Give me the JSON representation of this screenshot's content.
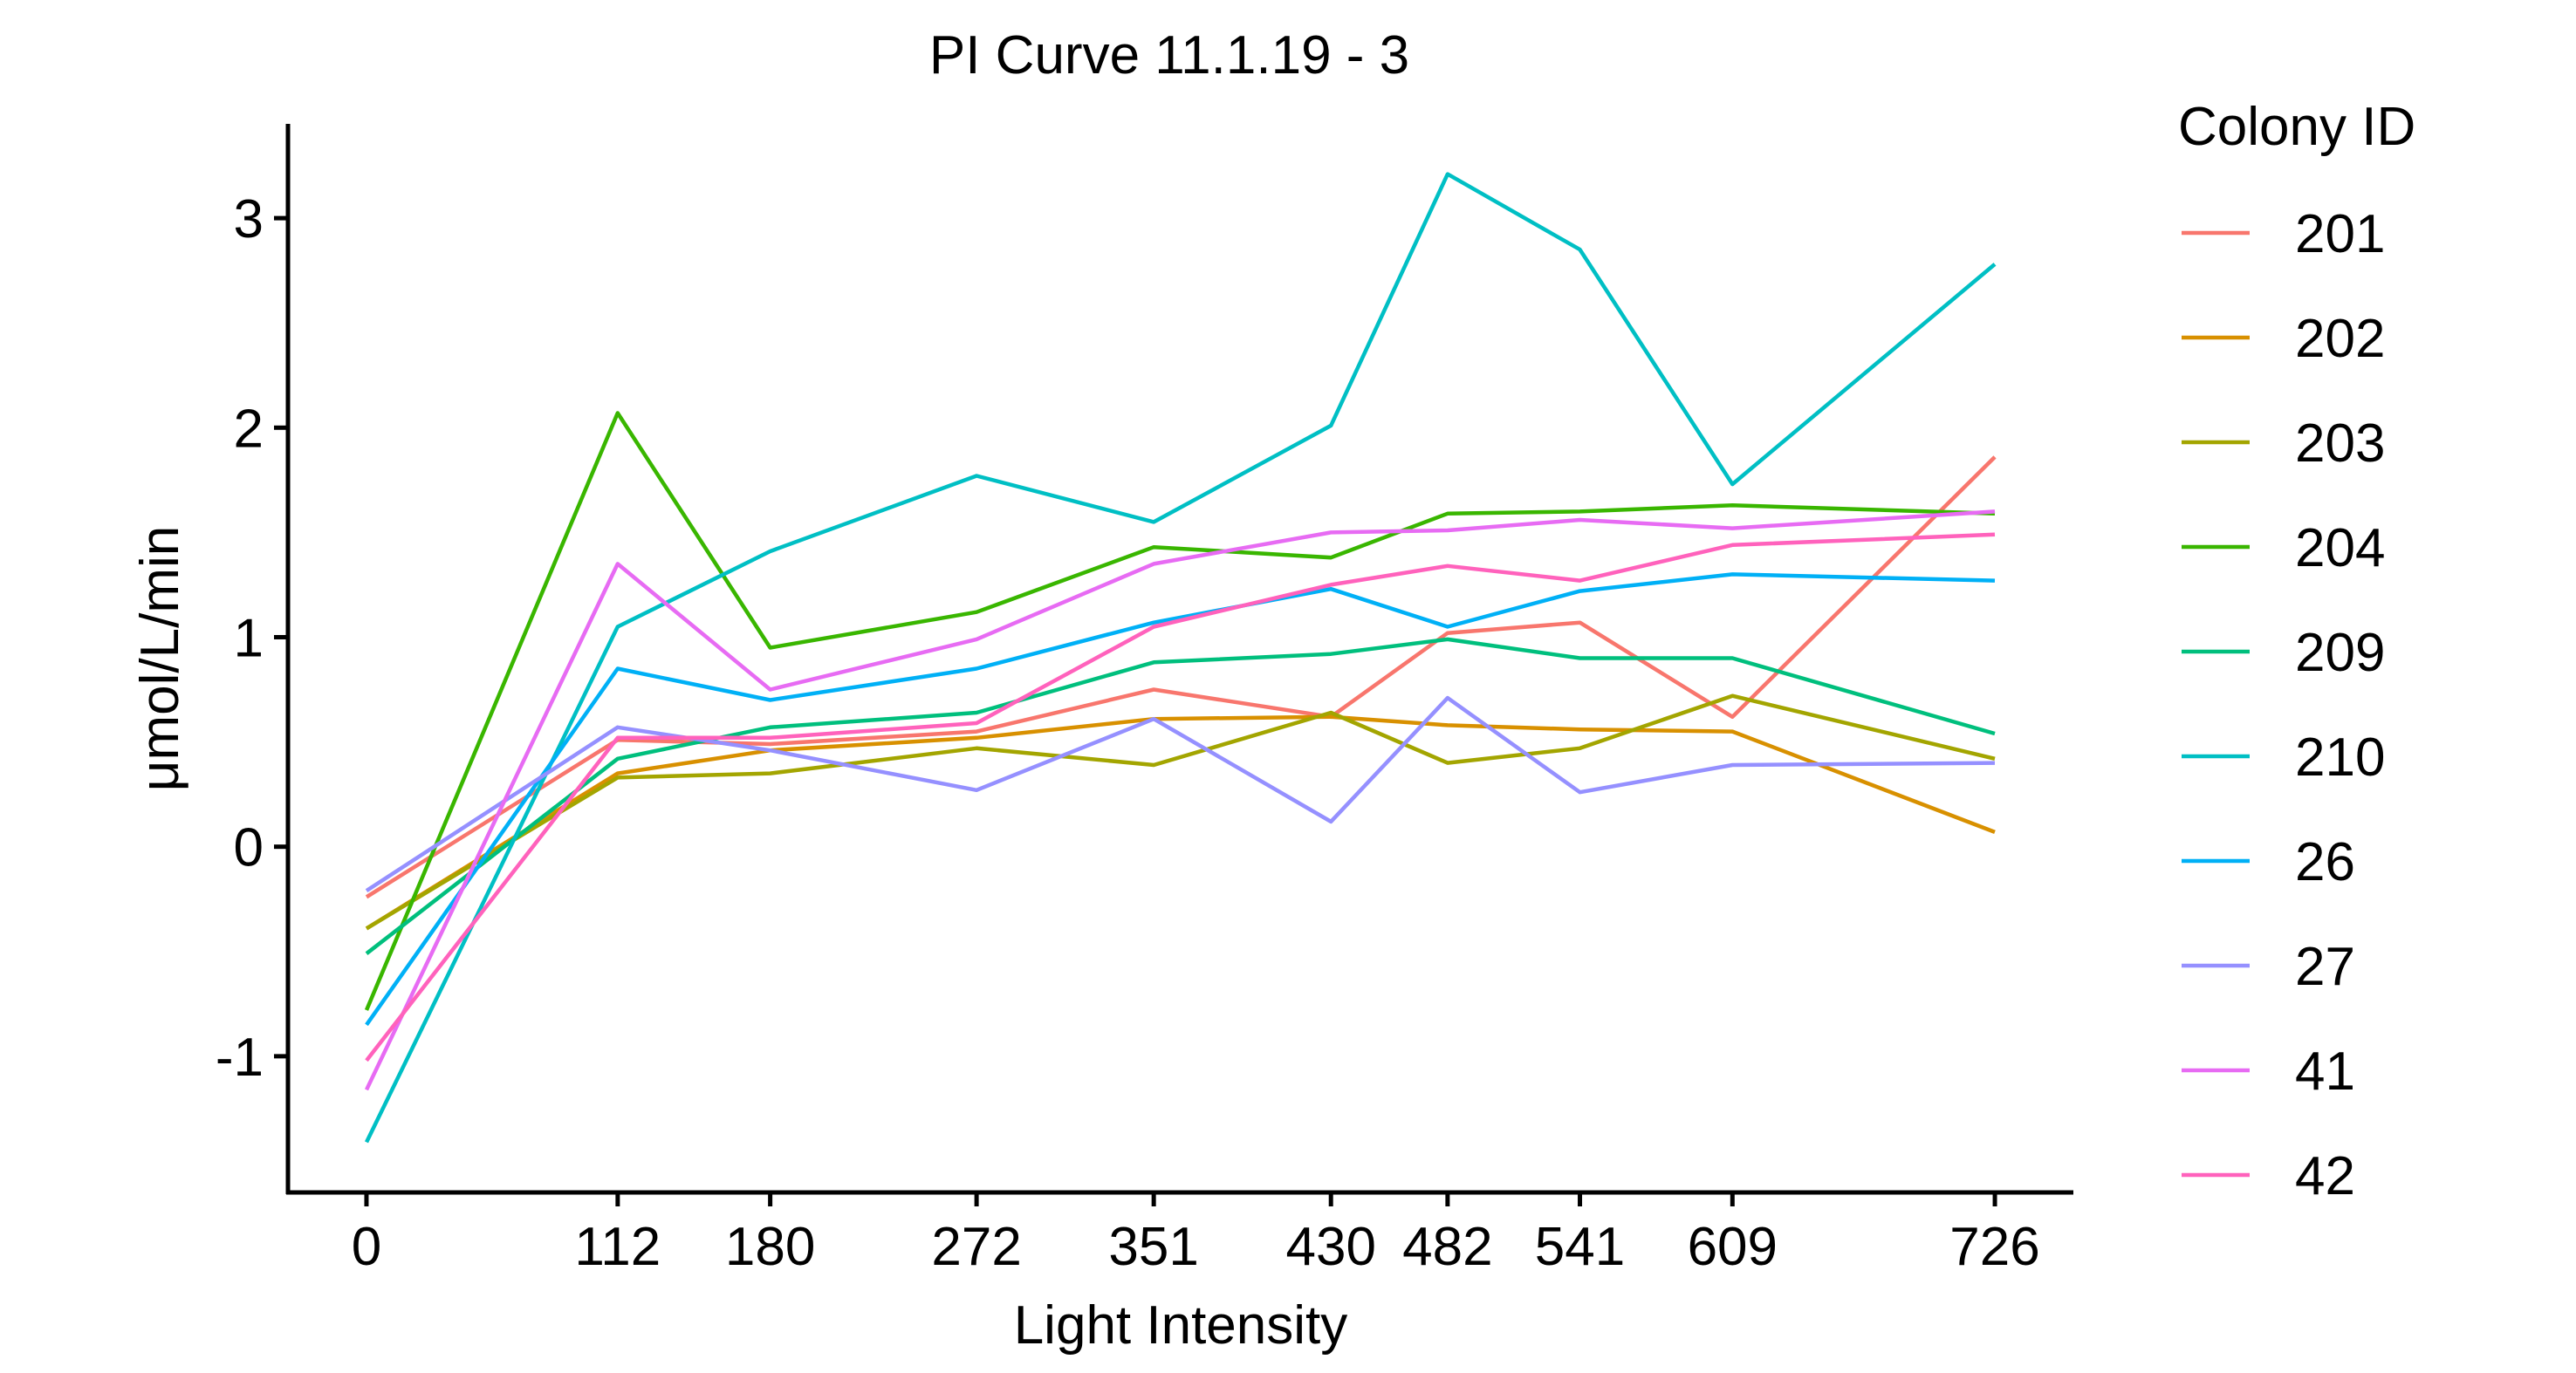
{
  "chart_data": {
    "type": "line",
    "title": "PI Curve 11.1.19 - 3",
    "xlabel": "Light Intensity",
    "ylabel": "μmol/L/min",
    "x": [
      0,
      112,
      180,
      272,
      351,
      430,
      482,
      541,
      609,
      726
    ],
    "x_tick_labels": [
      "0",
      "112",
      "180",
      "272",
      "351",
      "430",
      "482",
      "541",
      "609",
      "726"
    ],
    "xlim": [
      -35,
      761
    ],
    "ylim": [
      -1.65,
      3.45
    ],
    "y_ticks": [
      -1,
      0,
      1,
      2,
      3
    ],
    "y_tick_labels": [
      "-1",
      "0",
      "1",
      "2",
      "3"
    ],
    "grid": false,
    "legend": {
      "title": "Colony ID",
      "placement": "right"
    },
    "series": [
      {
        "name": "201",
        "color": "#F8766D",
        "values": [
          -0.24,
          0.51,
          0.49,
          0.55,
          0.75,
          0.62,
          1.02,
          1.07,
          0.62,
          1.86
        ]
      },
      {
        "name": "202",
        "color": "#D89000",
        "values": [
          -0.39,
          0.35,
          0.46,
          0.52,
          0.61,
          0.62,
          0.58,
          0.56,
          0.55,
          0.07
        ]
      },
      {
        "name": "203",
        "color": "#A3A500",
        "values": [
          -0.39,
          0.33,
          0.35,
          0.47,
          0.39,
          0.64,
          0.4,
          0.47,
          0.72,
          0.42
        ]
      },
      {
        "name": "204",
        "color": "#39B600",
        "values": [
          -0.78,
          2.07,
          0.95,
          1.12,
          1.43,
          1.38,
          1.59,
          1.6,
          1.63,
          1.59
        ]
      },
      {
        "name": "209",
        "color": "#00BF7D",
        "values": [
          -0.51,
          0.42,
          0.57,
          0.64,
          0.88,
          0.92,
          0.99,
          0.9,
          0.9,
          0.54
        ]
      },
      {
        "name": "210",
        "color": "#00BFC4",
        "values": [
          -1.41,
          1.05,
          1.41,
          1.77,
          1.55,
          2.01,
          3.21,
          2.85,
          1.73,
          2.78
        ]
      },
      {
        "name": "26",
        "color": "#00B0F6",
        "values": [
          -0.85,
          0.85,
          0.7,
          0.85,
          1.07,
          1.23,
          1.05,
          1.22,
          1.3,
          1.27
        ]
      },
      {
        "name": "27",
        "color": "#9590FF",
        "values": [
          -0.21,
          0.57,
          0.46,
          0.27,
          0.61,
          0.12,
          0.71,
          0.26,
          0.39,
          0.4
        ]
      },
      {
        "name": "41",
        "color": "#E76BF3",
        "values": [
          -1.16,
          1.35,
          0.75,
          0.99,
          1.35,
          1.5,
          1.51,
          1.56,
          1.52,
          1.6
        ]
      },
      {
        "name": "42",
        "color": "#FF62BC",
        "values": [
          -1.02,
          0.52,
          0.52,
          0.59,
          1.05,
          1.25,
          1.34,
          1.27,
          1.44,
          1.49
        ]
      }
    ]
  }
}
